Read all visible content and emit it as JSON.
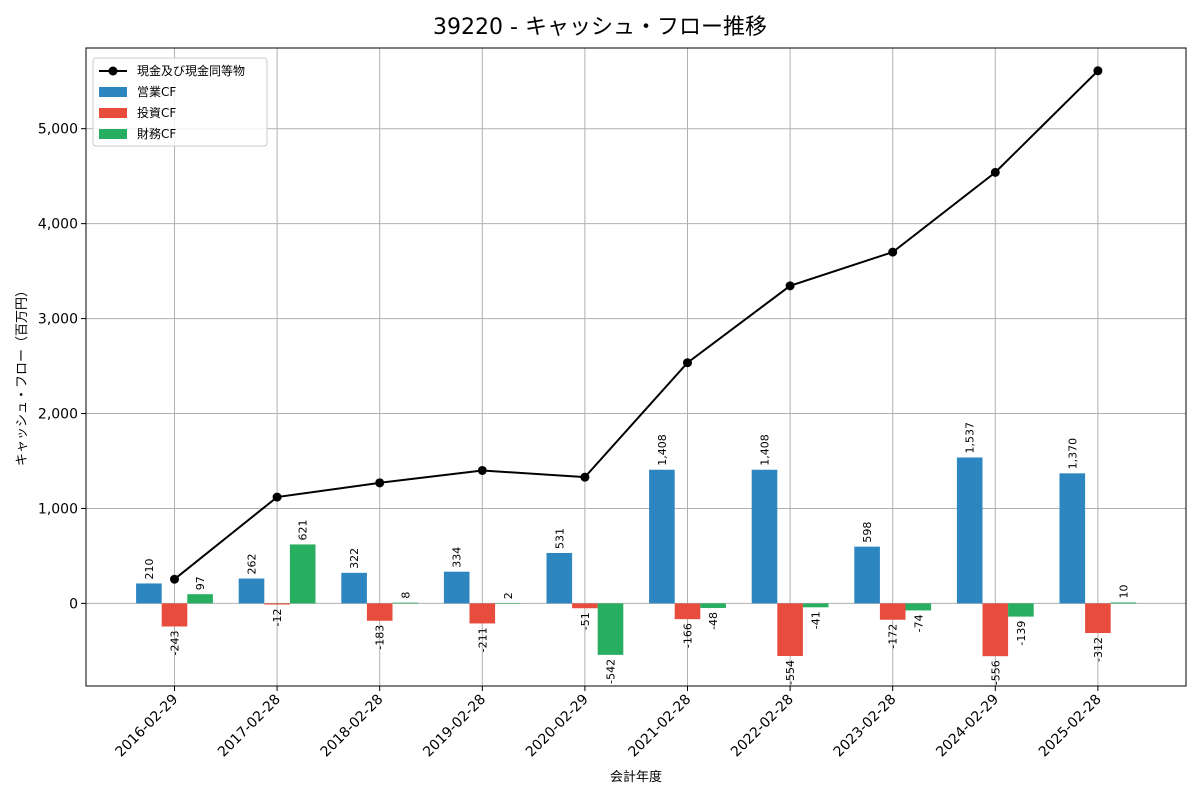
{
  "chart_data": {
    "type": "bar",
    "title": "39220 - キャッシュ・フロー推移",
    "xlabel": "会計年度",
    "ylabel": "キャッシュ・フロー（百万円）",
    "ylim": [
      -870,
      5850
    ],
    "yticks": [
      0,
      1000,
      2000,
      3000,
      4000,
      5000
    ],
    "ytick_labels": [
      "0",
      "1,000",
      "2,000",
      "3,000",
      "4,000",
      "5,000"
    ],
    "grid": true,
    "legend_position": "top-left",
    "categories": [
      "2016-02-29",
      "2017-02-28",
      "2018-02-28",
      "2019-02-28",
      "2020-02-29",
      "2021-02-28",
      "2022-02-28",
      "2023-02-28",
      "2024-02-29",
      "2025-02-28"
    ],
    "series": [
      {
        "name": "営業CF",
        "type": "bar",
        "color": "#2e86c1",
        "values": [
          210,
          262,
          322,
          334,
          531,
          1408,
          1408,
          598,
          1537,
          1370
        ],
        "labels": [
          "210",
          "262",
          "322",
          "334",
          "531",
          "1,408",
          "1,408",
          "598",
          "1,537",
          "1,370"
        ]
      },
      {
        "name": "投資CF",
        "type": "bar",
        "color": "#e74c3c",
        "values": [
          -243,
          -12,
          -183,
          -211,
          -51,
          -166,
          -554,
          -172,
          -556,
          -312
        ],
        "labels": [
          "-243",
          "-12",
          "-183",
          "-211",
          "-51",
          "-166",
          "-554",
          "-172",
          "-556",
          "-312"
        ]
      },
      {
        "name": "財務CF",
        "type": "bar",
        "color": "#27ae60",
        "values": [
          97,
          621,
          8,
          2,
          -542,
          -48,
          -41,
          -74,
          -139,
          10
        ],
        "labels": [
          "97",
          "621",
          "8",
          "2",
          "-542",
          "-48",
          "-41",
          "-74",
          "-139",
          "10"
        ]
      },
      {
        "name": "現金及び現金同等物",
        "type": "line",
        "color": "#000000",
        "values": [
          255,
          1120,
          1270,
          1400,
          1330,
          2535,
          3345,
          3700,
          4540,
          5610
        ]
      }
    ]
  }
}
